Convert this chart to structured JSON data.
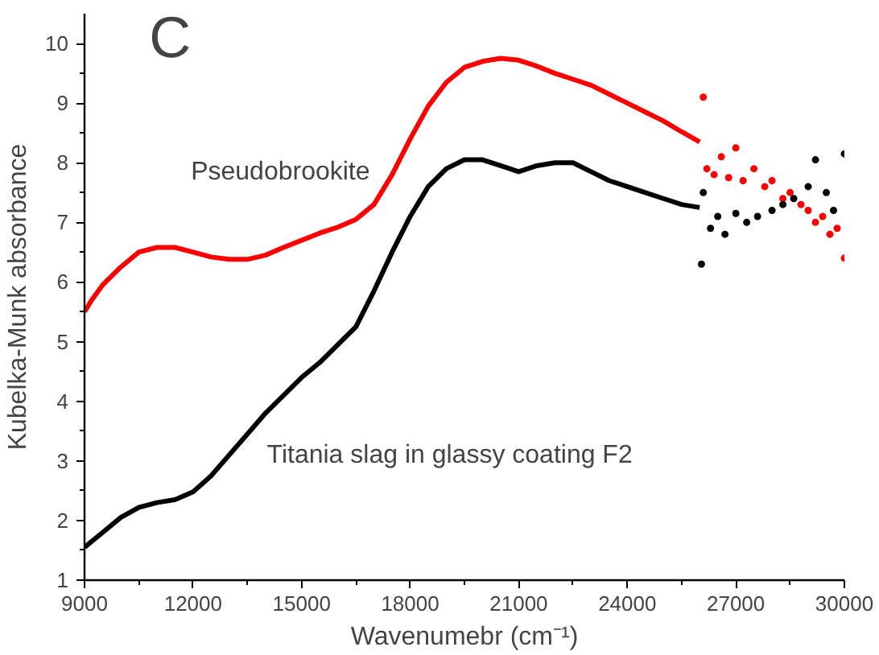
{
  "chart_data": {
    "type": "line",
    "xlabel": "Wavenumebr (cm⁻¹)",
    "ylabel": "Kubelka-Munk absorbance",
    "annotations": [
      "C"
    ],
    "xlim": [
      9000,
      30000
    ],
    "xticks": [
      9000,
      12000,
      15000,
      18000,
      21000,
      24000,
      27000,
      30000
    ],
    "ylim": [
      1,
      10.5
    ],
    "yticks": [
      1,
      2,
      3,
      4,
      5,
      6,
      7,
      8,
      9,
      10
    ],
    "grid": false,
    "legend": false,
    "marker": "none",
    "line_style": "solid",
    "series": [
      {
        "name": "Pseudobrookite",
        "color": "#ff0000",
        "x": [
          9000,
          9200,
          9500,
          10000,
          10500,
          11000,
          11500,
          12000,
          12500,
          13000,
          13500,
          14000,
          14500,
          15000,
          15500,
          16000,
          16500,
          17000,
          17500,
          18000,
          18500,
          19000,
          19500,
          20000,
          20500,
          21000,
          21500,
          22000,
          22500,
          23000,
          23500,
          24000,
          24500,
          25000,
          25500,
          26000
        ],
        "values": [
          5.5,
          5.7,
          5.95,
          6.25,
          6.5,
          6.58,
          6.58,
          6.5,
          6.42,
          6.38,
          6.38,
          6.45,
          6.58,
          6.7,
          6.82,
          6.92,
          7.05,
          7.3,
          7.8,
          8.4,
          8.95,
          9.35,
          9.6,
          9.7,
          9.75,
          9.72,
          9.62,
          9.5,
          9.4,
          9.3,
          9.15,
          9.0,
          8.85,
          8.7,
          8.52,
          8.35
        ]
      },
      {
        "name": "Titania slag in glassy coating F2",
        "color": "#000000",
        "x": [
          9000,
          9500,
          10000,
          10500,
          11000,
          11500,
          12000,
          12500,
          13000,
          13500,
          14000,
          14500,
          15000,
          15500,
          16000,
          16500,
          17000,
          17500,
          18000,
          18500,
          19000,
          19500,
          20000,
          20500,
          21000,
          21500,
          22000,
          22500,
          23000,
          23500,
          24000,
          24500,
          25000,
          25500,
          26000
        ],
        "values": [
          1.55,
          1.8,
          2.05,
          2.22,
          2.3,
          2.35,
          2.48,
          2.75,
          3.1,
          3.45,
          3.8,
          4.1,
          4.4,
          4.65,
          4.95,
          5.25,
          5.85,
          6.5,
          7.1,
          7.6,
          7.9,
          8.05,
          8.05,
          7.95,
          7.85,
          7.95,
          8.0,
          8.0,
          7.85,
          7.7,
          7.6,
          7.5,
          7.4,
          7.3,
          7.25
        ]
      },
      {
        "type": "scatter",
        "marker": "circle",
        "color": "#ff0000",
        "x": [
          26100,
          26200,
          26400,
          26600,
          26800,
          27000,
          27200,
          27500,
          27800,
          28000,
          28300,
          28500,
          28800,
          29000,
          29200,
          29400,
          29600,
          29800,
          30000
        ],
        "values": [
          9.1,
          7.9,
          7.8,
          8.1,
          7.75,
          8.25,
          7.7,
          7.9,
          7.6,
          7.7,
          7.4,
          7.5,
          7.3,
          7.2,
          7.0,
          7.1,
          6.8,
          6.9,
          6.4
        ]
      },
      {
        "type": "scatter",
        "marker": "circle",
        "color": "#000000",
        "x": [
          26050,
          26100,
          26300,
          26500,
          26700,
          27000,
          27300,
          27600,
          28000,
          28300,
          28600,
          29000,
          29200,
          29500,
          29700,
          30000
        ],
        "values": [
          6.3,
          7.5,
          6.9,
          7.1,
          6.8,
          7.15,
          7.0,
          7.1,
          7.2,
          7.3,
          7.4,
          7.6,
          8.05,
          7.5,
          7.2,
          8.15
        ]
      }
    ]
  }
}
